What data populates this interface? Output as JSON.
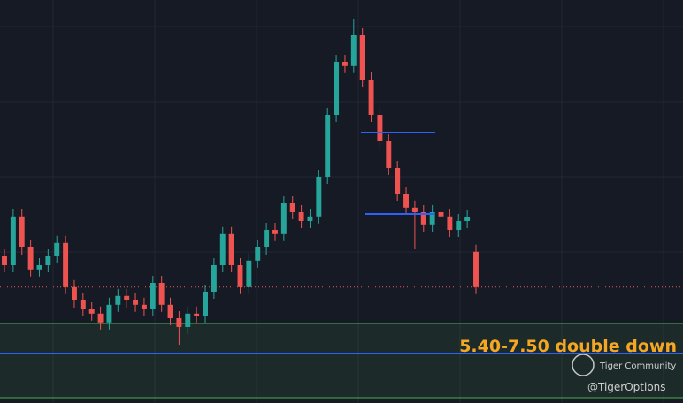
{
  "chart_data": {
    "type": "candlestick",
    "annotation": "5.40-7.50 double down",
    "watermark": "Tiger Community",
    "handle": "@TigerOptions",
    "ylim": [
      5.25,
      16.65
    ],
    "up_color": "#26a69a",
    "down_color": "#ef5350",
    "zone": {
      "low": 5.4,
      "high": 7.5,
      "color": "#4caf50"
    },
    "support_line": {
      "value": 6.65,
      "color": "#2962ff"
    },
    "last_price_line": {
      "value": 8.53,
      "color": "#ef5350"
    },
    "range_lines": {
      "values": [
        12.9,
        10.6
      ],
      "color": "#2962ff"
    },
    "open": [
      9.4,
      9.15,
      10.53,
      9.65,
      9.03,
      9.15,
      9.4,
      9.78,
      8.53,
      8.15,
      7.9,
      7.78,
      7.53,
      8.03,
      8.28,
      8.15,
      8.03,
      7.9,
      8.65,
      8.03,
      7.65,
      7.4,
      7.78,
      7.7,
      8.4,
      9.15,
      10.03,
      9.15,
      8.53,
      9.28,
      9.65,
      10.15,
      10.03,
      10.9,
      10.65,
      10.4,
      10.53,
      11.65,
      13.4,
      14.9,
      14.78,
      15.65,
      14.4,
      13.4,
      12.65,
      11.9,
      11.15,
      10.78,
      10.65,
      10.28,
      10.65,
      10.53,
      10.15,
      10.4,
      9.53
    ],
    "high": [
      9.6,
      10.73,
      10.73,
      9.85,
      9.35,
      9.6,
      9.98,
      9.98,
      8.73,
      8.35,
      8.1,
      7.98,
      8.23,
      8.48,
      8.48,
      8.35,
      8.23,
      8.85,
      8.85,
      8.23,
      7.85,
      7.98,
      7.98,
      8.6,
      9.35,
      10.23,
      10.23,
      9.35,
      9.48,
      9.85,
      10.35,
      10.35,
      11.1,
      11.1,
      10.85,
      10.73,
      11.85,
      13.6,
      15.1,
      15.1,
      16.1,
      15.85,
      14.6,
      13.6,
      12.85,
      12.1,
      11.35,
      10.98,
      10.85,
      10.85,
      10.85,
      10.73,
      10.6,
      10.7,
      9.73
    ],
    "low": [
      8.95,
      8.95,
      9.45,
      8.83,
      8.83,
      8.95,
      9.2,
      8.33,
      7.95,
      7.7,
      7.58,
      7.33,
      7.33,
      7.83,
      7.95,
      7.83,
      7.7,
      7.7,
      7.83,
      7.45,
      6.9,
      7.2,
      7.5,
      7.5,
      8.2,
      8.95,
      8.95,
      8.33,
      8.33,
      9.08,
      9.45,
      9.83,
      9.83,
      10.45,
      10.2,
      10.2,
      10.33,
      11.45,
      13.2,
      14.58,
      14.58,
      14.2,
      13.2,
      12.45,
      11.7,
      10.95,
      10.58,
      9.6,
      10.08,
      10.08,
      10.33,
      9.95,
      9.95,
      10.2,
      8.33
    ],
    "close": [
      9.15,
      10.53,
      9.65,
      9.03,
      9.15,
      9.4,
      9.78,
      8.53,
      8.15,
      7.9,
      7.78,
      7.53,
      8.03,
      8.28,
      8.15,
      8.03,
      7.9,
      8.65,
      8.03,
      7.65,
      7.4,
      7.78,
      7.7,
      8.4,
      9.15,
      10.03,
      9.15,
      8.53,
      9.28,
      9.65,
      10.15,
      10.03,
      10.9,
      10.65,
      10.4,
      10.53,
      11.65,
      13.4,
      14.9,
      14.78,
      15.65,
      14.4,
      13.4,
      12.65,
      11.9,
      11.15,
      10.78,
      10.65,
      10.28,
      10.65,
      10.53,
      10.15,
      10.4,
      10.5,
      8.53
    ]
  }
}
